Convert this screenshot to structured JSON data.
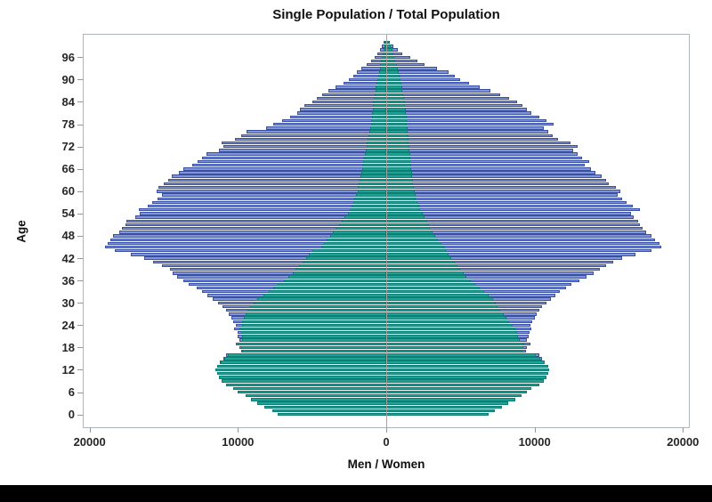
{
  "title": "Single Population / Total Population",
  "x_axis": {
    "label": "Men / Women",
    "half_max": 20400,
    "ticks": [
      {
        "value": -20000,
        "label": "20000"
      },
      {
        "value": -10000,
        "label": "10000"
      },
      {
        "value": 0,
        "label": "0"
      },
      {
        "value": 10000,
        "label": "10000"
      },
      {
        "value": 20000,
        "label": "20000"
      }
    ]
  },
  "y_axis": {
    "label": "Age",
    "ticks": [
      0,
      6,
      12,
      18,
      24,
      30,
      36,
      42,
      48,
      54,
      60,
      66,
      72,
      78,
      84,
      90,
      96
    ]
  },
  "colors": {
    "total": {
      "fill": "#8095d8",
      "stroke": "#3b4fa0"
    },
    "single": {
      "fill": "#1da296",
      "stroke": "#0e7d74"
    },
    "zero_line": "#a9a49f",
    "frame": "#aeb6bc",
    "tick": "#8f979d",
    "text": "#111111"
  },
  "chart_data": {
    "type": "bar",
    "subtype": "population-pyramid",
    "title": "Single Population / Total Population",
    "xlabel": "Men / Women",
    "ylabel": "Age",
    "x_range": [
      -20400,
      20400
    ],
    "age_range": [
      0,
      100
    ],
    "grid": false,
    "legend": "none",
    "note": "values indexed by age 0..100; left side = men, right side = women; single overlays total",
    "series": [
      {
        "name": "men-total",
        "side": "left",
        "color_key": "total",
        "values": [
          7300,
          7700,
          8200,
          8700,
          9100,
          9500,
          10000,
          10300,
          10800,
          11100,
          11300,
          11400,
          11500,
          11400,
          11200,
          11000,
          10800,
          9800,
          9900,
          10150,
          9900,
          10000,
          10050,
          10250,
          10150,
          10300,
          10450,
          10600,
          10800,
          11050,
          11350,
          11700,
          12050,
          12400,
          12800,
          13300,
          13700,
          14100,
          14400,
          14600,
          15100,
          15700,
          16300,
          17200,
          18300,
          18950,
          18800,
          18600,
          18400,
          18000,
          17800,
          17600,
          17500,
          16900,
          16600,
          16700,
          16100,
          15800,
          15400,
          15100,
          15500,
          15380,
          15000,
          14700,
          14480,
          14000,
          13670,
          13100,
          12700,
          12400,
          12100,
          11300,
          11000,
          11080,
          10180,
          9800,
          9400,
          8100,
          7600,
          7000,
          6500,
          6000,
          5800,
          5500,
          5000,
          4700,
          4300,
          3900,
          3400,
          2900,
          2500,
          2200,
          2000,
          1700,
          1300,
          1000,
          800,
          600,
          450,
          300,
          200
        ]
      },
      {
        "name": "women-total",
        "side": "right",
        "color_key": "total",
        "values": [
          6900,
          7300,
          7800,
          8200,
          8700,
          9100,
          9500,
          9800,
          10300,
          10600,
          10800,
          10900,
          11000,
          10900,
          10700,
          10500,
          10300,
          9400,
          9500,
          9700,
          9500,
          9600,
          9650,
          9800,
          9700,
          9850,
          10000,
          10150,
          10300,
          10500,
          10800,
          11100,
          11400,
          11700,
          12100,
          12500,
          13000,
          13500,
          14000,
          14400,
          14800,
          15300,
          15900,
          16800,
          17900,
          18560,
          18400,
          18140,
          17900,
          17500,
          17250,
          17100,
          17000,
          16700,
          16500,
          17100,
          16600,
          16200,
          15900,
          15600,
          15800,
          15500,
          15000,
          14800,
          14500,
          14100,
          13800,
          13400,
          13700,
          13200,
          12900,
          12600,
          12900,
          12400,
          11600,
          11200,
          10900,
          10600,
          11300,
          10800,
          10300,
          9800,
          9500,
          9200,
          8800,
          8300,
          7700,
          7000,
          6300,
          5600,
          5000,
          4600,
          4200,
          3400,
          2600,
          2100,
          1600,
          1100,
          800,
          500,
          250
        ]
      },
      {
        "name": "men-single",
        "side": "left",
        "color_key": "single",
        "values": [
          7300,
          7700,
          8200,
          8700,
          9100,
          9500,
          10000,
          10300,
          10800,
          11100,
          11300,
          11400,
          11500,
          11400,
          11150,
          10950,
          10700,
          9750,
          9800,
          10000,
          9700,
          9750,
          9800,
          9900,
          9750,
          9740,
          9600,
          9480,
          9340,
          9200,
          8940,
          8680,
          8300,
          7950,
          7600,
          7300,
          6900,
          6600,
          6300,
          6100,
          5870,
          5650,
          5400,
          5200,
          5000,
          4400,
          4200,
          4000,
          3800,
          3600,
          3400,
          3200,
          3000,
          2800,
          2600,
          2450,
          2350,
          2250,
          2150,
          2050,
          1950,
          1900,
          1850,
          1800,
          1750,
          1700,
          1650,
          1600,
          1550,
          1500,
          1450,
          1400,
          1350,
          1300,
          1250,
          1200,
          1150,
          1100,
          1050,
          1000,
          975,
          950,
          925,
          900,
          875,
          850,
          800,
          750,
          700,
          650,
          600,
          550,
          500,
          450,
          400,
          350,
          300,
          250,
          200,
          150,
          100
        ]
      },
      {
        "name": "women-single",
        "side": "right",
        "color_key": "single",
        "values": [
          6900,
          7300,
          7800,
          8200,
          8700,
          9100,
          9500,
          9800,
          10300,
          10600,
          10800,
          10900,
          11000,
          10900,
          10650,
          10400,
          10100,
          9200,
          9250,
          9300,
          9000,
          8900,
          8800,
          8700,
          8500,
          8300,
          8100,
          7900,
          7700,
          7500,
          7400,
          7200,
          6900,
          6600,
          6300,
          6000,
          5700,
          5400,
          5200,
          5000,
          4800,
          4600,
          4400,
          4200,
          4000,
          3870,
          3700,
          3500,
          3300,
          3100,
          2950,
          2850,
          2750,
          2600,
          2450,
          2300,
          2200,
          2100,
          2000,
          1950,
          1900,
          1850,
          1800,
          1775,
          1750,
          1725,
          1700,
          1675,
          1650,
          1625,
          1600,
          1575,
          1550,
          1525,
          1500,
          1475,
          1450,
          1425,
          1400,
          1375,
          1350,
          1325,
          1300,
          1275,
          1250,
          1200,
          1150,
          1100,
          1050,
          1000,
          950,
          900,
          850,
          775,
          700,
          625,
          550,
          475,
          400,
          300,
          200
        ]
      }
    ]
  }
}
